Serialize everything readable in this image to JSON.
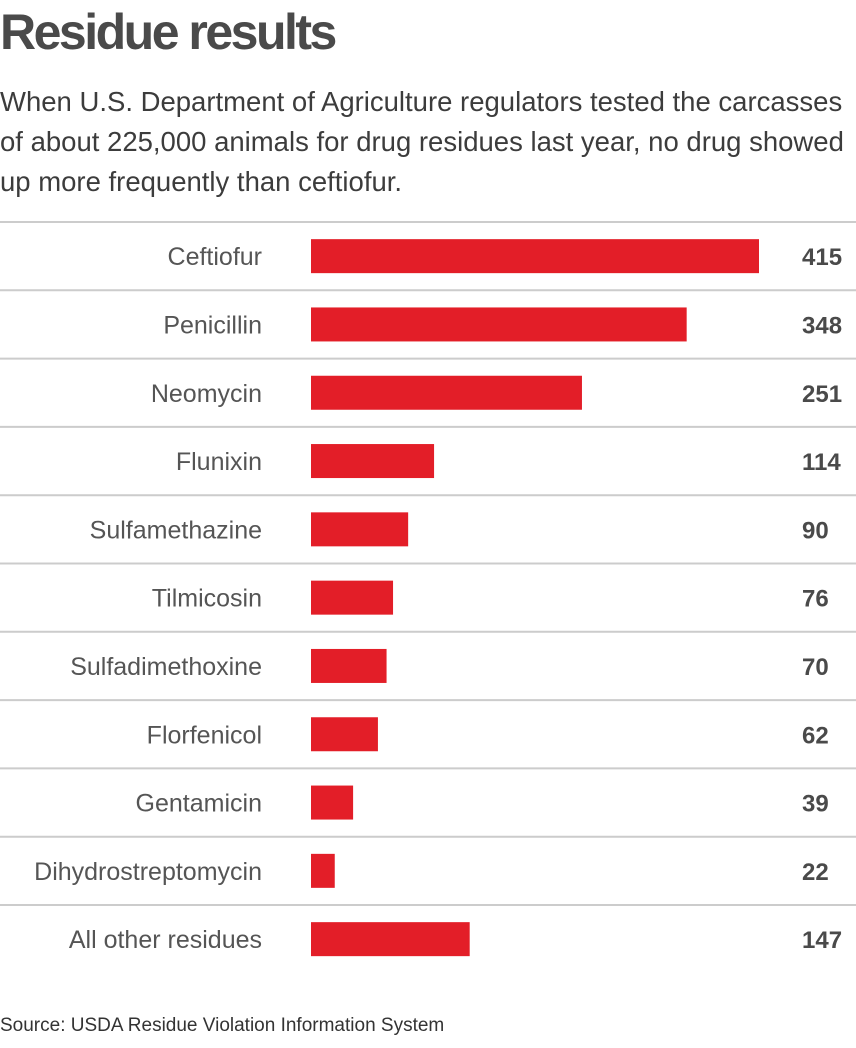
{
  "header": {
    "title": "Residue results",
    "subtitle": "When U.S. Department of Agriculture regulators tested the carcasses of about 225,000 animals for drug residues last year, no drug showed up more frequently than ceftiofur."
  },
  "footer": {
    "source": "Source: USDA Residue Violation Information System"
  },
  "colors": {
    "bar": "#e31e28",
    "gridline": "#cccccc"
  },
  "chart_data": {
    "type": "bar",
    "orientation": "horizontal",
    "categories": [
      "Ceftiofur",
      "Penicillin",
      "Neomycin",
      "Flunixin",
      "Sulfamethazine",
      "Tilmicosin",
      "Sulfadimethoxine",
      "Florfenicol",
      "Gentamicin",
      "Dihydrostreptomycin",
      "All other residues"
    ],
    "values": [
      415,
      348,
      251,
      114,
      90,
      76,
      70,
      62,
      39,
      22,
      147
    ],
    "xlabel": "",
    "ylabel": "",
    "xlim": [
      0,
      415
    ],
    "grid": false,
    "legend": "none",
    "data_labels": "right"
  }
}
